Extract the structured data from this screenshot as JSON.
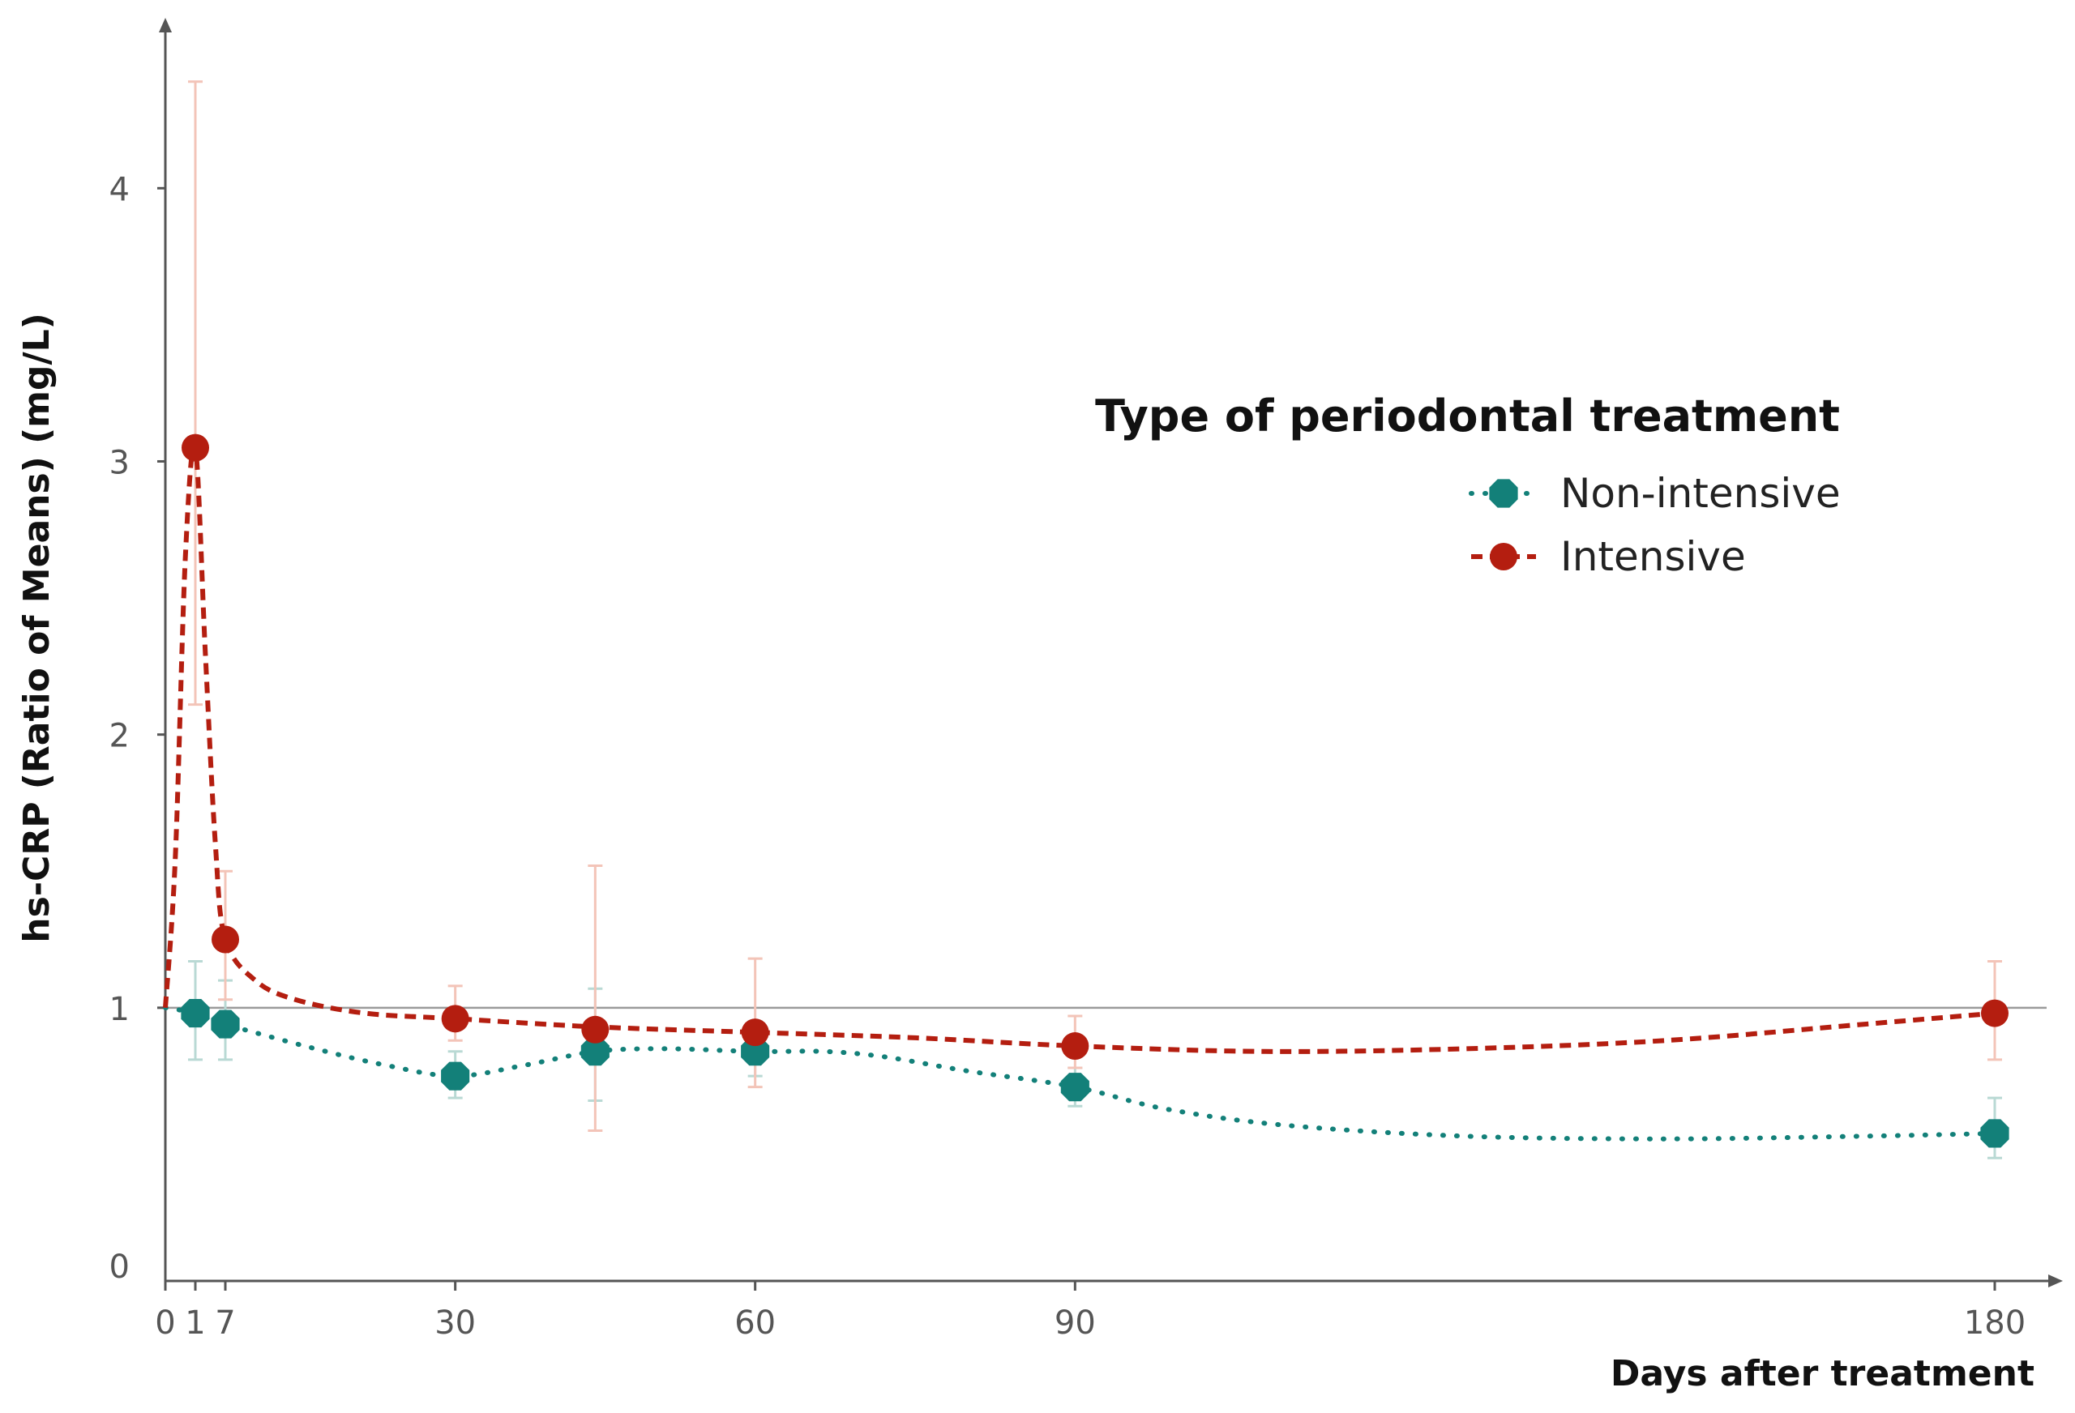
{
  "chart_data": {
    "type": "line",
    "title": "",
    "xlabel": "Days after treatment",
    "ylabel": "hs-CRP (Ratio of Means) (mg/L)",
    "xlim": [
      0,
      189
    ],
    "ylim": [
      0,
      4.6
    ],
    "x_ticks": [
      {
        "value": 0,
        "label": "0"
      },
      {
        "value": 3,
        "label": "1"
      },
      {
        "value": 6,
        "label": "7"
      },
      {
        "value": 29,
        "label": "30"
      },
      {
        "value": 59,
        "label": "60"
      },
      {
        "value": 91,
        "label": "90"
      },
      {
        "value": 183,
        "label": "180"
      }
    ],
    "y_ticks": [
      {
        "value": 0,
        "label": "0"
      },
      {
        "value": 1,
        "label": "1"
      },
      {
        "value": 2,
        "label": "2"
      },
      {
        "value": 3,
        "label": "3"
      },
      {
        "value": 4,
        "label": "4"
      }
    ],
    "reference_line": 1,
    "legend_title": "Type of periodontal treatment",
    "legend_position": "top-right",
    "series": [
      {
        "name": "Non-intensive",
        "color": "#138079",
        "errorbar_color": "#b9d9d4",
        "line_style": "dotted",
        "marker": "octagon",
        "x": [
          3,
          6,
          29,
          43,
          59,
          91,
          183
        ],
        "values": [
          0.98,
          0.94,
          0.75,
          0.84,
          0.84,
          0.71,
          0.54
        ],
        "lower": [
          0.81,
          0.81,
          0.67,
          0.66,
          0.75,
          0.64,
          0.45
        ],
        "upper": [
          1.17,
          1.1,
          0.84,
          1.07,
          0.95,
          0.78,
          0.67
        ],
        "curve": [
          [
            0,
            1.0
          ],
          [
            3,
            0.98
          ],
          [
            6,
            0.94
          ],
          [
            15,
            0.85
          ],
          [
            22,
            0.79
          ],
          [
            29,
            0.75
          ],
          [
            36,
            0.79
          ],
          [
            43,
            0.84
          ],
          [
            50,
            0.85
          ],
          [
            59,
            0.84
          ],
          [
            66,
            0.84
          ],
          [
            72,
            0.82
          ],
          [
            80,
            0.77
          ],
          [
            91,
            0.71
          ],
          [
            100,
            0.63
          ],
          [
            112,
            0.57
          ],
          [
            130,
            0.53
          ],
          [
            150,
            0.52
          ],
          [
            170,
            0.53
          ],
          [
            183,
            0.54
          ]
        ]
      },
      {
        "name": "Intensive",
        "color": "#b41e10",
        "errorbar_color": "#f3c4b8",
        "line_style": "dashed",
        "marker": "circle",
        "x": [
          3,
          6,
          29,
          43,
          59,
          91,
          183
        ],
        "values": [
          3.05,
          1.25,
          0.96,
          0.92,
          0.91,
          0.86,
          0.98
        ],
        "lower": [
          2.11,
          1.03,
          0.88,
          0.55,
          0.71,
          0.78,
          0.81
        ],
        "upper": [
          4.39,
          1.5,
          1.08,
          1.52,
          1.18,
          0.97,
          1.17
        ],
        "curve": [
          [
            0,
            1.0
          ],
          [
            1,
            1.55
          ],
          [
            2,
            2.65
          ],
          [
            3,
            3.05
          ],
          [
            4,
            2.3
          ],
          [
            5,
            1.6
          ],
          [
            6,
            1.25
          ],
          [
            9,
            1.1
          ],
          [
            13,
            1.03
          ],
          [
            20,
            0.98
          ],
          [
            29,
            0.96
          ],
          [
            43,
            0.93
          ],
          [
            59,
            0.91
          ],
          [
            75,
            0.89
          ],
          [
            91,
            0.86
          ],
          [
            110,
            0.84
          ],
          [
            130,
            0.85
          ],
          [
            150,
            0.88
          ],
          [
            170,
            0.94
          ],
          [
            183,
            0.98
          ]
        ]
      }
    ]
  }
}
